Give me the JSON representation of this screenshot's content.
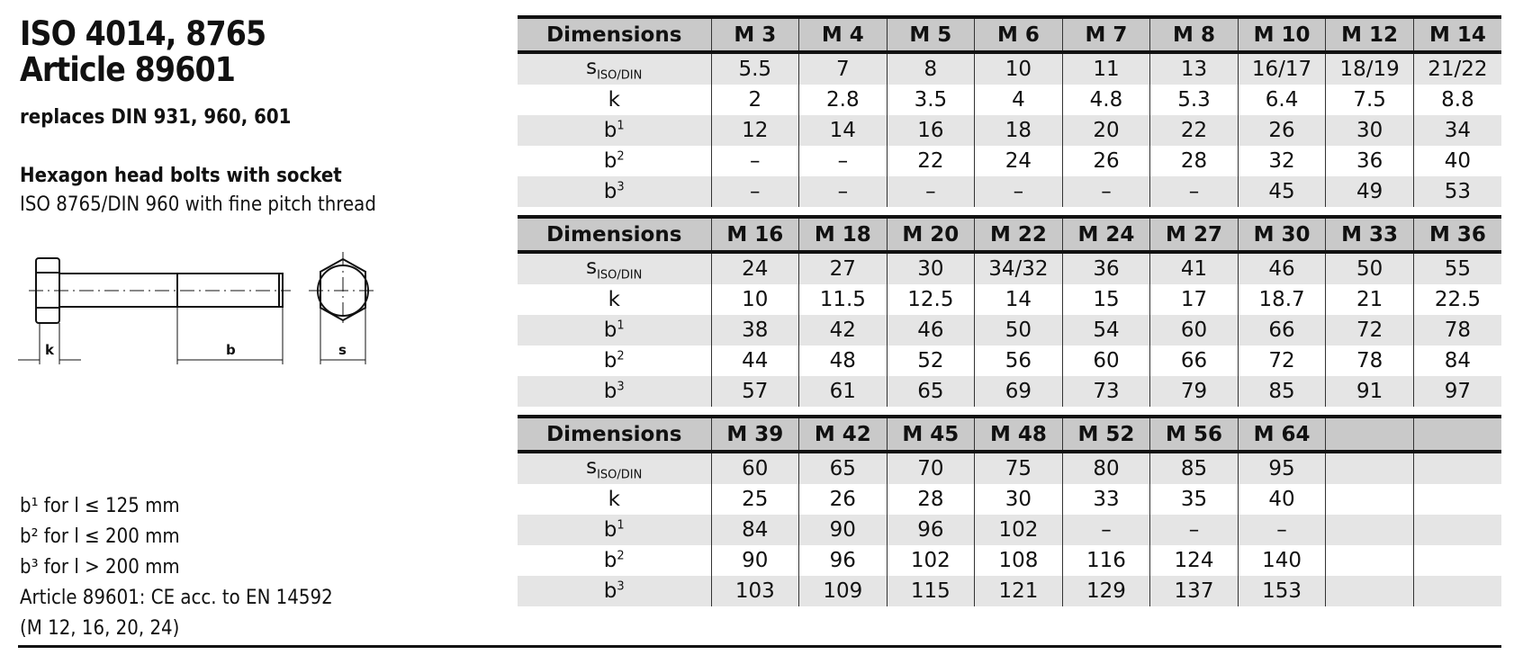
{
  "title_line1": "ISO 4014, 8765",
  "title_line2": "Article 89601",
  "replaces": "replaces DIN 931, 960, 601",
  "subtitle": "Hexagon head bolts with socket",
  "subline": "ISO 8765/DIN 960 with fine pitch thread",
  "drawing": {
    "label_k": "k",
    "label_b": "b",
    "label_s": "s"
  },
  "row_labels": {
    "s_base": "s",
    "s_sub": "ISO/DIN",
    "k": "k",
    "b": "b",
    "sup1": "1",
    "sup2": "2",
    "sup3": "3"
  },
  "tables": [
    {
      "header": "Dimensions",
      "sizes": [
        "M 3",
        "M 4",
        "M 5",
        "M 6",
        "M 7",
        "M 8",
        "M 10",
        "M 12",
        "M 14"
      ],
      "s": [
        "5.5",
        "7",
        "8",
        "10",
        "11",
        "13",
        "16/17",
        "18/19",
        "21/22"
      ],
      "k": [
        "2",
        "2.8",
        "3.5",
        "4",
        "4.8",
        "5.3",
        "6.4",
        "7.5",
        "8.8"
      ],
      "b1": [
        "12",
        "14",
        "16",
        "18",
        "20",
        "22",
        "26",
        "30",
        "34"
      ],
      "b2": [
        "–",
        "–",
        "22",
        "24",
        "26",
        "28",
        "32",
        "36",
        "40"
      ],
      "b3": [
        "–",
        "–",
        "–",
        "–",
        "–",
        "–",
        "45",
        "49",
        "53"
      ]
    },
    {
      "header": "Dimensions",
      "sizes": [
        "M 16",
        "M 18",
        "M 20",
        "M 22",
        "M 24",
        "M 27",
        "M 30",
        "M 33",
        "M 36"
      ],
      "s": [
        "24",
        "27",
        "30",
        "34/32",
        "36",
        "41",
        "46",
        "50",
        "55"
      ],
      "k": [
        "10",
        "11.5",
        "12.5",
        "14",
        "15",
        "17",
        "18.7",
        "21",
        "22.5"
      ],
      "b1": [
        "38",
        "42",
        "46",
        "50",
        "54",
        "60",
        "66",
        "72",
        "78"
      ],
      "b2": [
        "44",
        "48",
        "52",
        "56",
        "60",
        "66",
        "72",
        "78",
        "84"
      ],
      "b3": [
        "57",
        "61",
        "65",
        "69",
        "73",
        "79",
        "85",
        "91",
        "97"
      ]
    },
    {
      "header": "Dimensions",
      "sizes": [
        "M 39",
        "M 42",
        "M 45",
        "M 48",
        "M 52",
        "M 56",
        "M 64",
        "",
        ""
      ],
      "s": [
        "60",
        "65",
        "70",
        "75",
        "80",
        "85",
        "95",
        "",
        ""
      ],
      "k": [
        "25",
        "26",
        "28",
        "30",
        "33",
        "35",
        "40",
        "",
        ""
      ],
      "b1": [
        "84",
        "90",
        "96",
        "102",
        "–",
        "–",
        "–",
        "",
        ""
      ],
      "b2": [
        "90",
        "96",
        "102",
        "108",
        "116",
        "124",
        "140",
        "",
        ""
      ],
      "b3": [
        "103",
        "109",
        "115",
        "121",
        "129",
        "137",
        "153",
        "",
        ""
      ]
    }
  ],
  "notes": [
    "b¹ for l ≤ 125 mm",
    "b² for l ≤ 200 mm",
    "b³ for l > 200 mm",
    "Article 89601: CE acc. to EN 14592",
    "(M 12, 16, 20, 24)"
  ]
}
